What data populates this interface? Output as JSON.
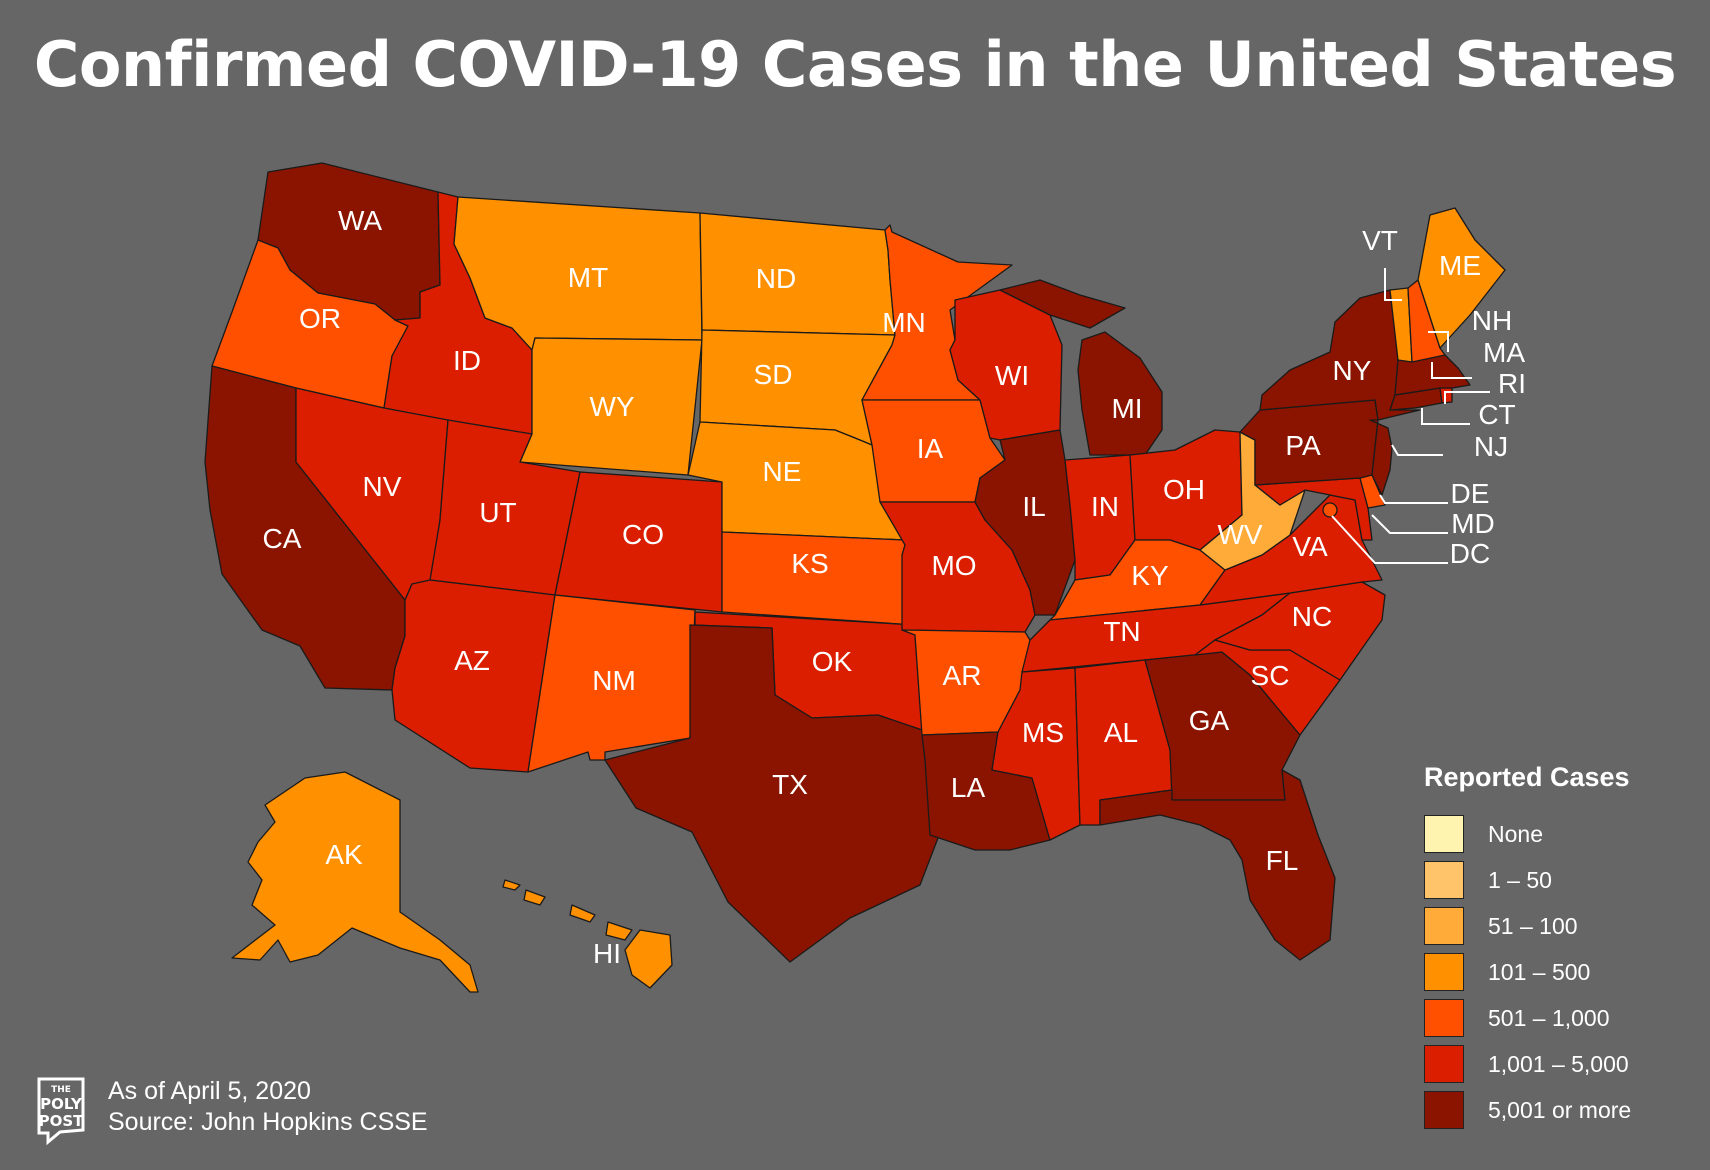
{
  "title": "Confirmed COVID-19 Cases in the United States",
  "legend": {
    "title": "Reported Cases",
    "bins": [
      {
        "label": "None",
        "color": "#FFF3B0"
      },
      {
        "label": "1 – 50",
        "color": "#FFC46A"
      },
      {
        "label": "51 – 100",
        "color": "#FFAB3A"
      },
      {
        "label": "101 – 500",
        "color": "#FF9000"
      },
      {
        "label": "501 – 1,000",
        "color": "#FF5000"
      },
      {
        "label": "1,001 – 5,000",
        "color": "#DB1E00"
      },
      {
        "label": "5,001 or more",
        "color": "#8B1400"
      }
    ]
  },
  "states": {
    "WA": 6,
    "OR": 4,
    "CA": 6,
    "NV": 5,
    "ID": 5,
    "MT": 3,
    "WY": 3,
    "UT": 5,
    "AZ": 5,
    "CO": 5,
    "NM": 4,
    "ND": 3,
    "SD": 3,
    "NE": 3,
    "KS": 4,
    "OK": 5,
    "TX": 6,
    "MN": 4,
    "IA": 4,
    "MO": 5,
    "AR": 4,
    "LA": 6,
    "WI": 5,
    "IL": 6,
    "MI": 6,
    "IN": 5,
    "OH": 5,
    "KY": 4,
    "TN": 5,
    "MS": 5,
    "AL": 5,
    "GA": 6,
    "FL": 6,
    "SC": 5,
    "NC": 5,
    "VA": 5,
    "WV": 2,
    "PA": 6,
    "NY": 6,
    "VT": 3,
    "NH": 4,
    "ME": 3,
    "MA": 6,
    "RI": 5,
    "CT": 6,
    "NJ": 6,
    "DE": 4,
    "MD": 5,
    "DC": 4,
    "AK": 3,
    "HI": 3
  },
  "footer": {
    "date": "As of April 5, 2020",
    "source": "Source: John Hopkins CSSE",
    "logo_text": "THE POLY POST"
  }
}
